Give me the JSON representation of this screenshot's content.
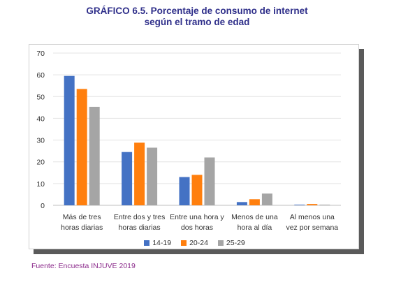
{
  "header": {
    "title_line1": "GRÁFICO 6.5. Porcentaje de consumo de internet",
    "title_line2": "según el tramo de edad"
  },
  "source": "Fuente: Encuesta INJUVE 2019",
  "chart_data": {
    "type": "bar",
    "categories": [
      [
        "Más de tres",
        "horas diarias"
      ],
      [
        "Entre dos y tres",
        "horas diarias"
      ],
      [
        "Entre una hora y",
        "dos horas"
      ],
      [
        "Menos de una",
        "hora al día"
      ],
      [
        "Al menos una",
        "vez por semana"
      ]
    ],
    "series": [
      {
        "name": "14-19",
        "color": "#4472c4",
        "values": [
          59.5,
          24.5,
          13,
          1.5,
          0.3
        ]
      },
      {
        "name": "20-24",
        "color": "#ff7f0e",
        "values": [
          53.5,
          28.8,
          14,
          2.8,
          0.6
        ]
      },
      {
        "name": "25-29",
        "color": "#a5a5a5",
        "values": [
          45.3,
          26.5,
          22,
          5.4,
          0.3
        ]
      }
    ],
    "yticks": [
      "0",
      "10",
      "20",
      "30",
      "40",
      "50",
      "60",
      "70"
    ],
    "ylim": [
      0,
      70
    ],
    "grid": true,
    "legend_position": "bottom"
  }
}
